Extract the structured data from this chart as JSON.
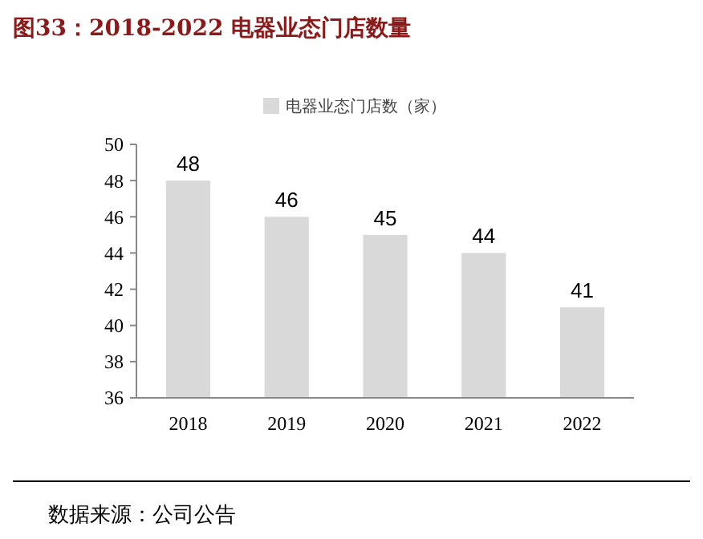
{
  "chart_data": {
    "type": "bar",
    "title": "图33：2018-2022 电器业态门店数量",
    "categories": [
      "2018",
      "2019",
      "2020",
      "2021",
      "2022"
    ],
    "series": [
      {
        "name": "电器业态门店数（家）",
        "color": "#d9d9d9",
        "values": [
          48,
          46,
          45,
          44,
          41
        ]
      }
    ],
    "ylim": [
      36,
      50
    ],
    "yticks": [
      36,
      38,
      40,
      42,
      44,
      46,
      48,
      50
    ],
    "grid": false,
    "legend": "top",
    "data_labels": true,
    "annotations": [
      "数据来源：公司公告"
    ]
  }
}
